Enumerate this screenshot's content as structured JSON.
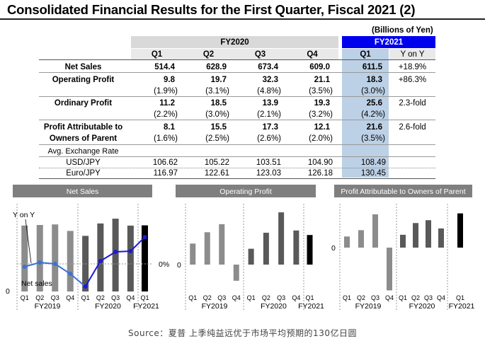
{
  "title": "Consolidated Financial Results for the First Quarter, Fiscal 2021 (2)",
  "unit_note": "(Billions of Yen)",
  "table": {
    "fy2020_label": "FY2020",
    "fy2021_label": "FY2021",
    "quarters": [
      "Q1",
      "Q2",
      "Q3",
      "Q4"
    ],
    "fy2021_q": "Q1",
    "yoy_label": "Y on Y",
    "rows": [
      {
        "label": "Net Sales",
        "values": [
          "514.4",
          "628.9",
          "673.4",
          "609.0"
        ],
        "fy2021": "611.5",
        "yoy": "+18.9%",
        "ratios": null,
        "fy2021_ratio": null
      },
      {
        "label": "Operating Profit",
        "values": [
          "9.8",
          "19.7",
          "32.3",
          "21.1"
        ],
        "fy2021": "18.3",
        "yoy": "+86.3%",
        "ratios": [
          "(1.9%)",
          "(3.1%)",
          "(4.8%)",
          "(3.5%)"
        ],
        "fy2021_ratio": "(3.0%)"
      },
      {
        "label": "Ordinary Profit",
        "values": [
          "11.2",
          "18.5",
          "13.9",
          "19.3"
        ],
        "fy2021": "25.6",
        "yoy": "2.3-fold",
        "ratios": [
          "(2.2%)",
          "(3.0%)",
          "(2.1%)",
          "(3.2%)"
        ],
        "fy2021_ratio": "(4.2%)"
      },
      {
        "label_lines": [
          "Profit Attributable to",
          "Owners of Parent"
        ],
        "values": [
          "8.1",
          "15.5",
          "17.3",
          "12.1"
        ],
        "fy2021": "21.6",
        "yoy": "2.6-fold",
        "ratios": [
          "(1.6%)",
          "(2.5%)",
          "(2.6%)",
          "(2.0%)"
        ],
        "fy2021_ratio": "(3.5%)"
      }
    ],
    "fx_label": "Avg. Exchange Rate",
    "fx_rows": [
      {
        "label": "USD/JPY",
        "values": [
          "106.62",
          "105.22",
          "103.51",
          "104.90"
        ],
        "fy2021": "108.49"
      },
      {
        "label": "Euro/JPY",
        "values": [
          "116.97",
          "122.61",
          "123.03",
          "126.18"
        ],
        "fy2021": "130.45"
      }
    ]
  },
  "chart_data": [
    {
      "type": "bar",
      "title": "Net Sales",
      "categories": [
        "Q1",
        "Q2",
        "Q3",
        "Q4",
        "Q1",
        "Q2",
        "Q3",
        "Q4",
        "Q1"
      ],
      "groups": [
        "FY2019",
        "FY2020",
        "FY2021"
      ],
      "series": [
        {
          "name": "Net sales",
          "values": [
            610,
            615,
            620,
            560,
            514.4,
            628.9,
            673.4,
            609.0,
            611.5
          ]
        },
        {
          "name": "Y on Y",
          "values": [
            -2,
            1,
            0,
            -7,
            -16,
            2,
            8.5,
            9,
            18.9
          ]
        }
      ],
      "y_left_label": "0",
      "y_right_label": "0%",
      "ylim": [
        0,
        700
      ],
      "yoy_lim": [
        -30,
        30
      ]
    },
    {
      "type": "bar",
      "title": "Operating Profit",
      "categories": [
        "Q1",
        "Q2",
        "Q3",
        "Q4",
        "Q1",
        "Q2",
        "Q3",
        "Q4",
        "Q1"
      ],
      "groups": [
        "FY2019",
        "FY2020",
        "FY2021"
      ],
      "series": [
        {
          "values": [
            13,
            20,
            25,
            -10,
            9.8,
            19.7,
            32.3,
            21.1,
            18.3
          ]
        }
      ],
      "y_label": "0",
      "ylim": [
        -15,
        35
      ]
    },
    {
      "type": "bar",
      "title": "Profit Attributable to Owners of Parent",
      "categories": [
        "Q1",
        "Q2",
        "Q3",
        "Q4",
        "Q1",
        "Q2",
        "Q3",
        "Q4",
        "Q1"
      ],
      "groups": [
        "FY2019",
        "FY2020",
        "FY2021"
      ],
      "series": [
        {
          "values": [
            7,
            11,
            21,
            -27,
            8.1,
            15.5,
            17.3,
            12.1,
            21.6
          ]
        }
      ],
      "y_label": "0",
      "ylim": [
        -30,
        25
      ]
    }
  ],
  "colors": {
    "fy2019": "#8c8c8c",
    "fy2020": "#595959",
    "fy2021": "#000000",
    "yoy_2019": "#3a72d8",
    "yoy_2020": "#1a1ad6",
    "header_fy2021": "#0000ee",
    "fy2021_col": "#bcd0e6",
    "panel_title": "#7f7f7f"
  },
  "source": "Source：夏普 上季纯益远优于市场平均预期的130亿日圆"
}
